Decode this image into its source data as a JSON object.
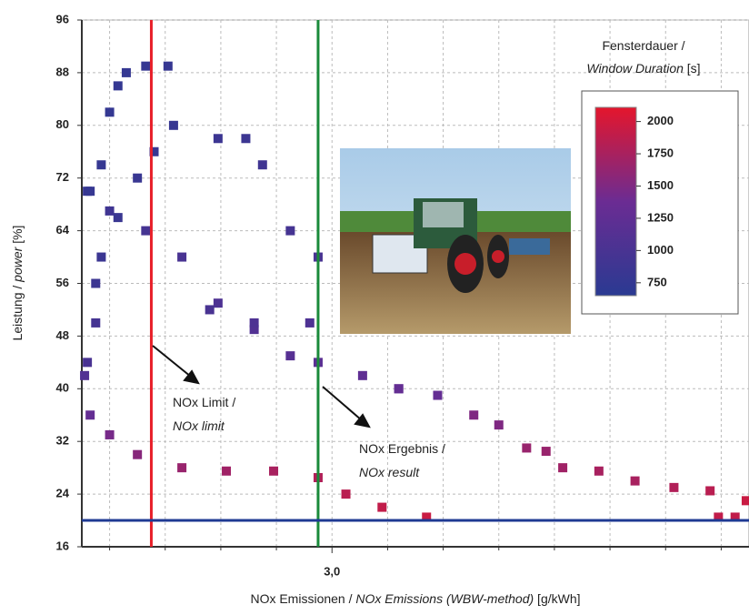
{
  "chart_data": {
    "type": "scatter",
    "x_label": [
      {
        "text": "NOx Emissionen / ",
        "italic": false
      },
      {
        "text": "NOx Emissions (WBW-method)",
        "italic": true
      },
      {
        "text": " [g/kWh]",
        "italic": false
      }
    ],
    "y_label": [
      {
        "text": "Leistung / ",
        "italic": false
      },
      {
        "text": "power",
        "italic": true
      },
      {
        "text": " [%]",
        "italic": false
      }
    ],
    "xlim": [
      2.1,
      4.5
    ],
    "ylim": [
      16,
      96
    ],
    "xticks": [
      {
        "value": 3,
        "label": "3,0"
      }
    ],
    "x_minor_ticks": [
      2.2,
      2.4,
      2.6,
      2.8,
      3.2,
      3.4,
      3.6,
      3.8,
      4.0,
      4.2,
      4.4
    ],
    "yticks": [
      16,
      24,
      32,
      40,
      48,
      56,
      64,
      72,
      80,
      88,
      96
    ],
    "grid": true,
    "series": [
      {
        "x": [
          2.11,
          2.13,
          2.2,
          2.3,
          2.46,
          2.62,
          2.79,
          2.95,
          3.05,
          3.18,
          3.34,
          3.24,
          3.38,
          3.51,
          3.6,
          3.7,
          3.77,
          3.83,
          3.96,
          4.09,
          4.23,
          4.36,
          4.39,
          4.45,
          4.49,
          2.2,
          2.33,
          2.46,
          2.59,
          2.72,
          2.85,
          2.95,
          3.11,
          3.24,
          2.59,
          2.69,
          2.75,
          2.85,
          2.95,
          2.56,
          2.72,
          2.92,
          2.12,
          2.17,
          2.2,
          2.23,
          2.26,
          2.33,
          2.41,
          2.43,
          2.36,
          2.3,
          2.23,
          2.17,
          2.15,
          2.13,
          2.12,
          2.15
        ],
        "values": [
          42,
          36,
          33,
          30,
          28,
          27.5,
          27.5,
          26.5,
          24,
          22,
          20.5,
          40,
          39,
          36,
          34.5,
          31,
          30.5,
          28,
          27.5,
          26,
          25,
          24.5,
          20.5,
          20.5,
          23,
          67,
          64,
          60,
          53,
          49,
          45,
          44,
          42,
          40,
          78,
          78,
          74,
          64,
          60,
          52,
          50,
          50,
          70,
          74,
          82,
          86,
          88,
          89,
          89,
          80,
          76,
          72,
          66,
          60,
          56,
          70,
          44,
          50
        ],
        "window_duration": [
          1100,
          1300,
          1450,
          1550,
          1650,
          1700,
          1750,
          1800,
          1850,
          1900,
          1950,
          1250,
          1300,
          1500,
          1500,
          1650,
          1650,
          1700,
          1750,
          1750,
          1800,
          1850,
          1900,
          1900,
          1950,
          900,
          950,
          1000,
          1050,
          1100,
          1150,
          1200,
          1250,
          1300,
          850,
          850,
          900,
          950,
          1000,
          1000,
          1050,
          1050,
          800,
          780,
          760,
          760,
          770,
          780,
          790,
          800,
          810,
          820,
          830,
          840,
          850,
          780,
          1000,
          950
        ]
      }
    ],
    "reference_lines": [
      {
        "axis": "x",
        "value": 2.35,
        "color": "#e8202a"
      },
      {
        "axis": "x",
        "value": 2.95,
        "color": "#1a8a3a"
      },
      {
        "axis": "y",
        "value": 20,
        "color": "#1f3a93"
      }
    ],
    "annotations": [
      {
        "text": "NOx  Limit /",
        "italic": false
      },
      {
        "text": "NOx limit",
        "italic": true
      },
      {
        "text": "NOx Ergebnis /",
        "italic": false
      },
      {
        "text": "NOx result",
        "italic": true
      }
    ],
    "colorbar": {
      "title": [
        {
          "text": "Fensterdauer /",
          "italic": false
        },
        {
          "text": "Window Duration",
          "italic": true
        },
        {
          "text": " [s]",
          "italic": false
        }
      ],
      "clim": [
        650,
        2110
      ],
      "ticks": [
        750,
        1000,
        1250,
        1500,
        1750,
        2000
      ],
      "colormap": [
        "#2a3a92",
        "#6b2c93",
        "#e4162c"
      ]
    }
  }
}
